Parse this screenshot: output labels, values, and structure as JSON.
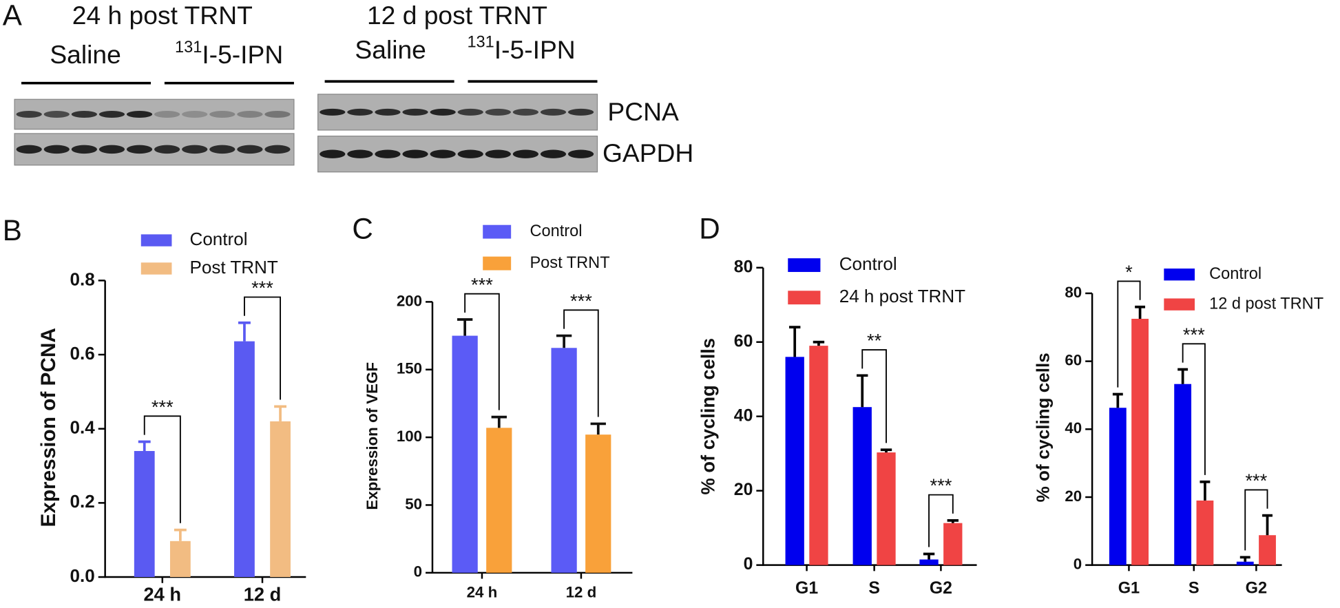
{
  "panel_a": {
    "label": "A",
    "rows": [
      "PCNA",
      "GAPDH"
    ],
    "blots": [
      {
        "title": "24 h post TRNT",
        "groups": [
          {
            "text": "Saline"
          },
          {
            "superscript": "131",
            "text": "I-5-IPN"
          }
        ]
      },
      {
        "title": "12 d post TRNT",
        "groups": [
          {
            "text": "Saline"
          },
          {
            "superscript": "131",
            "text": "I-5-IPN"
          }
        ]
      }
    ]
  },
  "chart_data": [
    {
      "type": "bar",
      "label": "B",
      "y_label": "Expression of PCNA",
      "categories": [
        "24 h",
        "12 d"
      ],
      "series": [
        {
          "name": "Control",
          "color": "#5a5af2",
          "values": [
            0.34,
            0.636
          ],
          "errors": [
            0.025,
            0.05
          ]
        },
        {
          "name": "Post TRNT",
          "color": "#f2bc82",
          "values": [
            0.097,
            0.42
          ],
          "errors": [
            0.03,
            0.04
          ]
        }
      ],
      "ylim": [
        0,
        0.8
      ],
      "yticks": [
        {
          "value": 0,
          "label": "0.0"
        },
        0.2,
        0.4,
        0.6,
        0.8
      ],
      "annotations": [
        {
          "text": "***",
          "category": "24 h"
        },
        {
          "text": "***",
          "category": "12 d"
        }
      ]
    },
    {
      "type": "bar",
      "label": "C",
      "y_label": "Expression of VEGF",
      "categories": [
        "24 h",
        "12 d"
      ],
      "series": [
        {
          "name": "Control",
          "color": "#5b5bf6",
          "values": [
            175,
            166
          ],
          "errors": [
            12,
            9
          ]
        },
        {
          "name": "Post TRNT",
          "color": "#f9a13a",
          "values": [
            107,
            102
          ],
          "errors": [
            8,
            8
          ]
        }
      ],
      "error_color": "#111111",
      "ylim": [
        0,
        200
      ],
      "yticks": [
        0,
        50,
        100,
        150,
        200
      ],
      "annotations": [
        {
          "text": "***",
          "category": "24 h"
        },
        {
          "text": "***",
          "category": "12 d"
        }
      ]
    },
    {
      "type": "bar",
      "label": "D",
      "y_label": "% of cycling cells",
      "categories": [
        "G1",
        "S",
        "G2"
      ],
      "series": [
        {
          "name": "Control",
          "color": "#0000ee",
          "values": [
            56,
            42.5,
            1.5
          ],
          "errors": [
            8,
            8.5,
            1.5
          ]
        },
        {
          "name": "24 h post TRNT",
          "color": "#f04444",
          "values": [
            59,
            30.3,
            11.3
          ],
          "errors": [
            1,
            0.7,
            0.7
          ]
        }
      ],
      "error_color": "#000000",
      "ylim": [
        0,
        80
      ],
      "yticks": [
        0,
        20,
        40,
        60,
        80
      ],
      "annotations": [
        {
          "text": "**",
          "category": "S"
        },
        {
          "text": "***",
          "category": "G2"
        }
      ]
    },
    {
      "type": "bar",
      "y_label": "% of cycling cells",
      "categories": [
        "G1",
        "S",
        "G2"
      ],
      "series": [
        {
          "name": "Control",
          "color": "#0000ee",
          "values": [
            46.3,
            53.3,
            1
          ],
          "errors": [
            4,
            4.3,
            1.3
          ]
        },
        {
          "name": "12 d post TRNT",
          "color": "#f04444",
          "values": [
            72.5,
            19,
            8.8
          ],
          "errors": [
            3.5,
            5.5,
            5.8
          ]
        }
      ],
      "error_color": "#000000",
      "ylim": [
        0,
        80
      ],
      "yticks": [
        0,
        20,
        40,
        60,
        80
      ],
      "annotations": [
        {
          "text": "*",
          "category": "G1"
        },
        {
          "text": "***",
          "category": "S"
        },
        {
          "text": "***",
          "category": "G2"
        }
      ]
    }
  ]
}
